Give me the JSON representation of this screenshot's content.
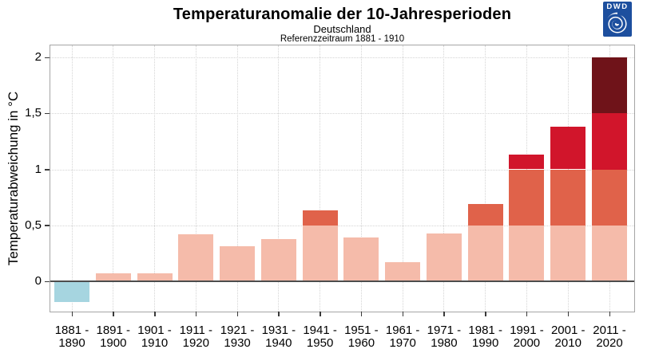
{
  "header": {
    "title": "Temperaturanomalie der 10-Jahresperioden",
    "subtitle": "Deutschland",
    "reference": "Referenzzeitraum 1881 - 1910"
  },
  "logo": {
    "text": "DWD",
    "background": "#1d4f9e"
  },
  "chart_data": {
    "type": "bar",
    "title": "Temperaturanomalie der 10-Jahresperioden",
    "subtitle": "Deutschland",
    "annotation": "Referenzzeitraum 1881 - 1910",
    "categories": [
      "1881 - 1890",
      "1891 - 1900",
      "1901 - 1910",
      "1911 - 1920",
      "1921 - 1930",
      "1931 - 1940",
      "1941 - 1950",
      "1951 - 1960",
      "1961 - 1970",
      "1971 - 1980",
      "1981 - 1990",
      "1991 - 2000",
      "2001 - 2010",
      "2011 - 2020"
    ],
    "values": [
      -0.18,
      0.07,
      0.07,
      0.42,
      0.31,
      0.38,
      0.63,
      0.39,
      0.17,
      0.43,
      0.69,
      1.13,
      1.38,
      2.0
    ],
    "xlabel": "",
    "ylabel": "Temperaturabweichung in °C",
    "yticks": [
      0,
      0.5,
      1,
      1.5,
      2
    ],
    "ytick_labels": [
      "0",
      "0,5",
      "1",
      "1,5",
      "2"
    ],
    "ylim": [
      -0.27,
      2.11
    ],
    "grid": "dotted, horizontal at 0.5 steps and vertical at each bar",
    "legend": "none",
    "segment_step": 0.5,
    "colors": {
      "negative": "#a6d5e0",
      "positive_levels": [
        "#f5bbaa",
        "#e0624a",
        "#d1152b",
        "#6f1319"
      ],
      "zero_line": "#4d4d4d",
      "gridline": "#d4d4d4",
      "frame": "#a5a5a5"
    }
  }
}
